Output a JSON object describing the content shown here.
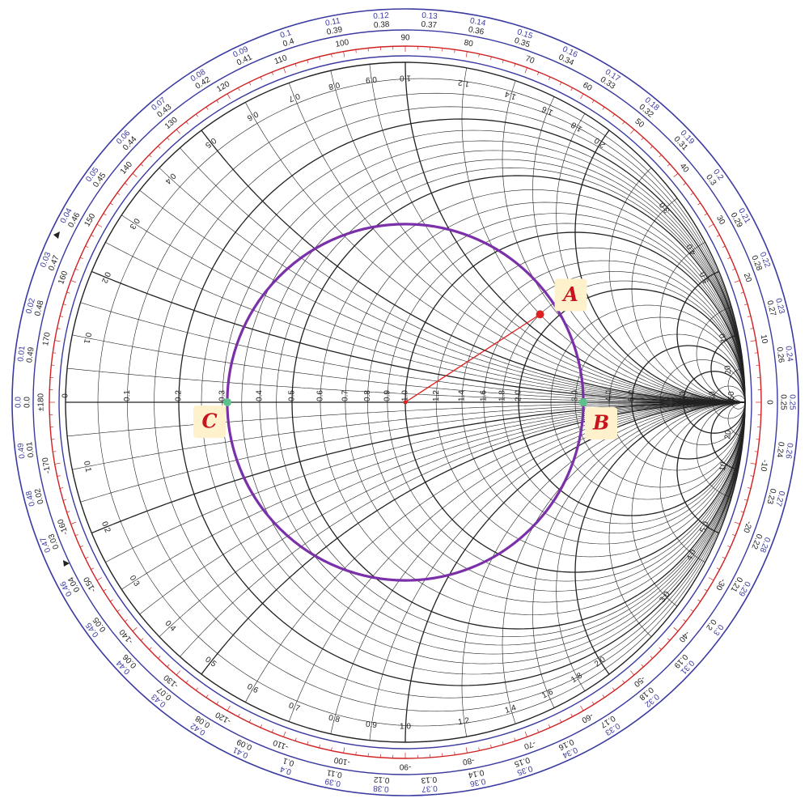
{
  "colors": {
    "ring_blue": "#3a3aa0",
    "ring_red": "#d02020",
    "grid": "#222222",
    "vswr_circle": "#7a30a8",
    "radial_line": "#e02020",
    "point_a": "#e02020",
    "point_bc": "#5cc08a",
    "label_bg": "#fff1cc",
    "label_text": "#c8141e"
  },
  "points": {
    "A": {
      "label": "A",
      "r": 1.8,
      "x": 1.2
    },
    "B": {
      "label": "B",
      "r": 3.2,
      "x": 0
    },
    "C": {
      "label": "C",
      "r": 0.3125,
      "x": 0
    }
  },
  "vswr_circle": {
    "gamma_magnitude": 0.524
  },
  "resistance_labels": [
    "0",
    "0.1",
    "0.2",
    "0.3",
    "0.4",
    "0.5",
    "0.6",
    "0.7",
    "0.8",
    "0.9",
    "1.0",
    "1.2",
    "1.4",
    "1.6",
    "1.8",
    "2.0",
    "3.0",
    "4.0",
    "5.0",
    "10",
    "20",
    "50"
  ],
  "reactance_labels": [
    "0.1",
    "0.2",
    "0.3",
    "0.4",
    "0.5",
    "0.6",
    "0.7",
    "0.8",
    "0.9",
    "1.0",
    "1.2",
    "1.4",
    "1.6",
    "1.8",
    "2.0",
    "3.0",
    "4.0",
    "5.0",
    "10",
    "20"
  ],
  "angle_labels": [
    "±180",
    "170",
    "160",
    "150",
    "140",
    "130",
    "120",
    "110",
    "100",
    "90",
    "80",
    "70",
    "60",
    "50",
    "40",
    "30",
    "20",
    "10",
    "0",
    "-10",
    "-20",
    "-30",
    "-40",
    "-50",
    "-60",
    "-70",
    "-80",
    "-90",
    "-100",
    "-110",
    "-120",
    "-130",
    "-140",
    "-150",
    "-160",
    "-170"
  ],
  "wavelengths_toward_load": [
    "0.0",
    "0.01",
    "0.02",
    "0.03",
    "0.04",
    "0.05",
    "0.06",
    "0.07",
    "0.08",
    "0.09",
    "0.1",
    "0.11",
    "0.12",
    "0.13",
    "0.14",
    "0.15",
    "0.16",
    "0.17",
    "0.18",
    "0.19",
    "0.2",
    "0.21",
    "0.22",
    "0.23",
    "0.24",
    "0.25",
    "0.26",
    "0.27",
    "0.28",
    "0.29",
    "0.3",
    "0.31",
    "0.32",
    "0.33",
    "0.34",
    "0.35",
    "0.36",
    "0.37",
    "0.38",
    "0.39",
    "0.4",
    "0.41",
    "0.42",
    "0.43",
    "0.44",
    "0.45",
    "0.46",
    "0.47",
    "0.48",
    "0.49"
  ],
  "wavelengths_toward_generator": [
    "0.0",
    "0.01",
    "0.02",
    "0.03",
    "0.04",
    "0.05",
    "0.06",
    "0.07",
    "0.08",
    "0.09",
    "0.1",
    "0.11",
    "0.12",
    "0.13",
    "0.14",
    "0.15",
    "0.16",
    "0.17",
    "0.18",
    "0.19",
    "0.2",
    "0.21",
    "0.22",
    "0.23",
    "0.24",
    "0.25",
    "0.26",
    "0.27",
    "0.28",
    "0.29",
    "0.3",
    "0.31",
    "0.32",
    "0.33",
    "0.34",
    "0.35",
    "0.36",
    "0.37",
    "0.38",
    "0.39",
    "0.4",
    "0.41",
    "0.42",
    "0.43",
    "0.44",
    "0.45",
    "0.46",
    "0.47",
    "0.48",
    "0.49"
  ]
}
